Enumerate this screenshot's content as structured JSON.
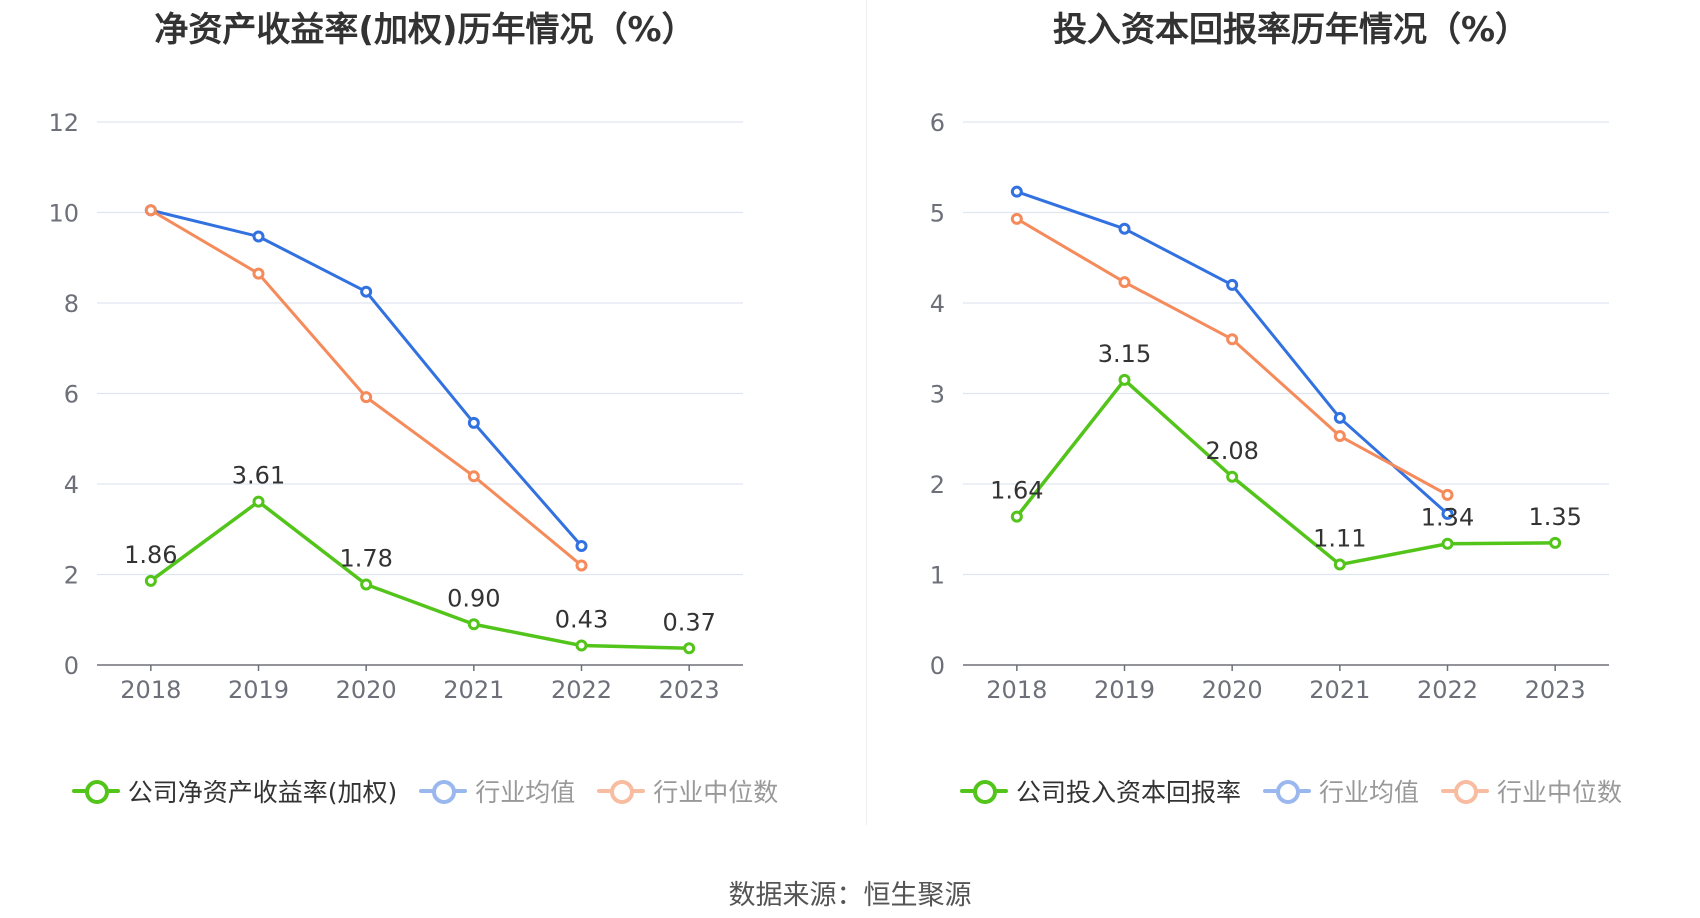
{
  "source_note": "数据来源：恒生聚源",
  "chart_data": [
    {
      "type": "line",
      "title": "净资产收益率(加权)历年情况（%）",
      "xlabel": "",
      "ylabel": "",
      "categories": [
        "2018",
        "2019",
        "2020",
        "2021",
        "2022",
        "2023"
      ],
      "ylim": [
        0,
        12
      ],
      "yticks": [
        "0",
        "2",
        "4",
        "6",
        "8",
        "10",
        "12"
      ],
      "grid": true,
      "legend_placement": "bottom",
      "series": [
        {
          "name": "公司净资产收益率(加权)",
          "color": "#52c41a",
          "labels": [
            "1.86",
            "3.61",
            "1.78",
            "0.90",
            "0.43",
            "0.37"
          ],
          "values": [
            1.86,
            3.61,
            1.78,
            0.9,
            0.43,
            0.37
          ],
          "active": true
        },
        {
          "name": "行业均值",
          "color": "#3271e0",
          "values": [
            10.05,
            9.47,
            8.25,
            5.35,
            2.63,
            null
          ],
          "active": false
        },
        {
          "name": "行业中位数",
          "color": "#f58a5a",
          "values": [
            10.05,
            8.65,
            5.92,
            4.17,
            2.2,
            null
          ],
          "active": false
        }
      ]
    },
    {
      "type": "line",
      "title": "投入资本回报率历年情况（%）",
      "xlabel": "",
      "ylabel": "",
      "categories": [
        "2018",
        "2019",
        "2020",
        "2021",
        "2022",
        "2023"
      ],
      "ylim": [
        0,
        6
      ],
      "yticks": [
        "0",
        "1",
        "2",
        "3",
        "4",
        "5",
        "6"
      ],
      "grid": true,
      "legend_placement": "bottom",
      "series": [
        {
          "name": "公司投入资本回报率",
          "color": "#52c41a",
          "labels": [
            "1.64",
            "3.15",
            "2.08",
            "1.11",
            "1.34",
            "1.35"
          ],
          "values": [
            1.64,
            3.15,
            2.08,
            1.11,
            1.34,
            1.35
          ],
          "active": true
        },
        {
          "name": "行业均值",
          "color": "#3271e0",
          "values": [
            5.23,
            4.82,
            4.2,
            2.73,
            1.67,
            null
          ],
          "active": false
        },
        {
          "name": "行业中位数",
          "color": "#f58a5a",
          "values": [
            4.93,
            4.23,
            3.6,
            2.53,
            1.88,
            null
          ],
          "active": false
        }
      ]
    }
  ]
}
